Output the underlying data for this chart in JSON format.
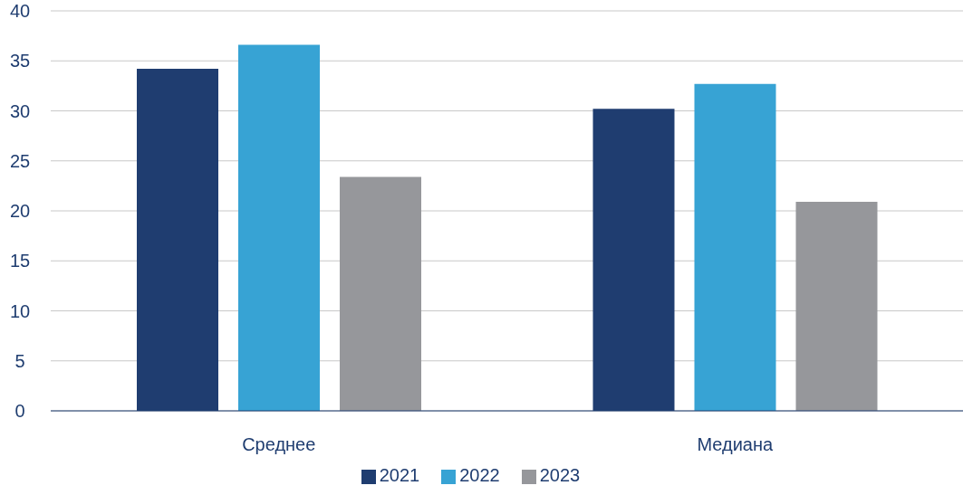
{
  "chart_data": {
    "type": "bar",
    "categories": [
      "Среднее",
      "Медиана"
    ],
    "series": [
      {
        "name": "2021",
        "color": "#1f3d70",
        "values": [
          34.2,
          30.2
        ]
      },
      {
        "name": "2022",
        "color": "#37a3d4",
        "values": [
          36.6,
          32.7
        ]
      },
      {
        "name": "2023",
        "color": "#96979b",
        "values": [
          23.4,
          20.9
        ]
      }
    ],
    "ylim": [
      0,
      40
    ],
    "yticks": [
      0,
      5,
      10,
      15,
      20,
      25,
      30,
      35,
      40
    ],
    "grid": "y",
    "legend": "bottom"
  }
}
